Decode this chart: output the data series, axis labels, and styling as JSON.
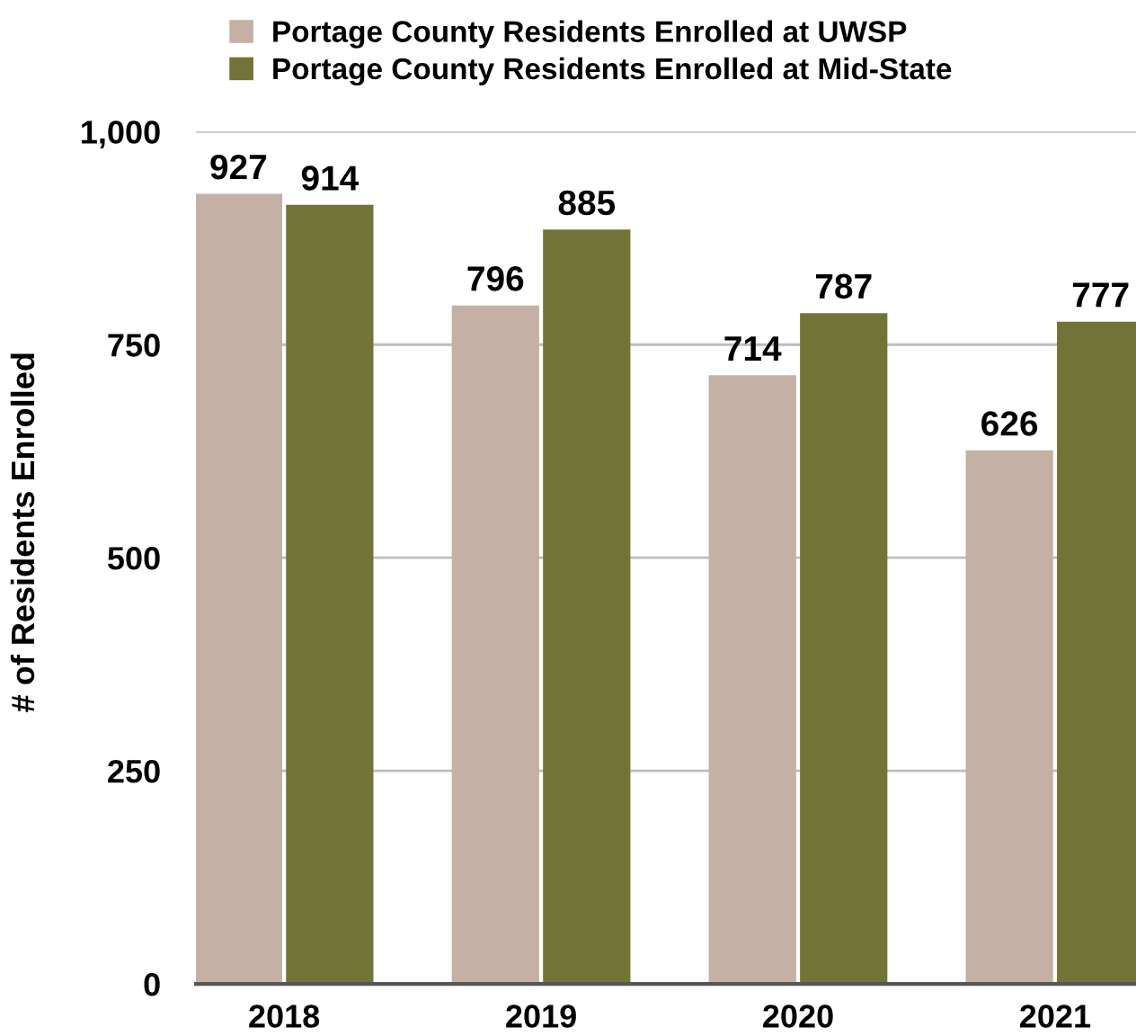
{
  "chart_data": {
    "type": "bar",
    "ylabel": "# of Residents Enrolled",
    "categories": [
      "2018",
      "2019",
      "2020",
      "2021"
    ],
    "series": [
      {
        "name": "Portage County Residents Enrolled at UWSP",
        "color": "#c4b0a5",
        "values": [
          927,
          796,
          714,
          626
        ]
      },
      {
        "name": "Portage County Residents Enrolled at Mid-State",
        "color": "#717436",
        "values": [
          914,
          885,
          787,
          777
        ]
      }
    ],
    "ylim": [
      0,
      1000
    ],
    "yticks": [
      0,
      250,
      500,
      750,
      {
        "value": 1000,
        "label": "1,000"
      }
    ],
    "grid": "y",
    "legend": "top",
    "data_labels": true
  }
}
